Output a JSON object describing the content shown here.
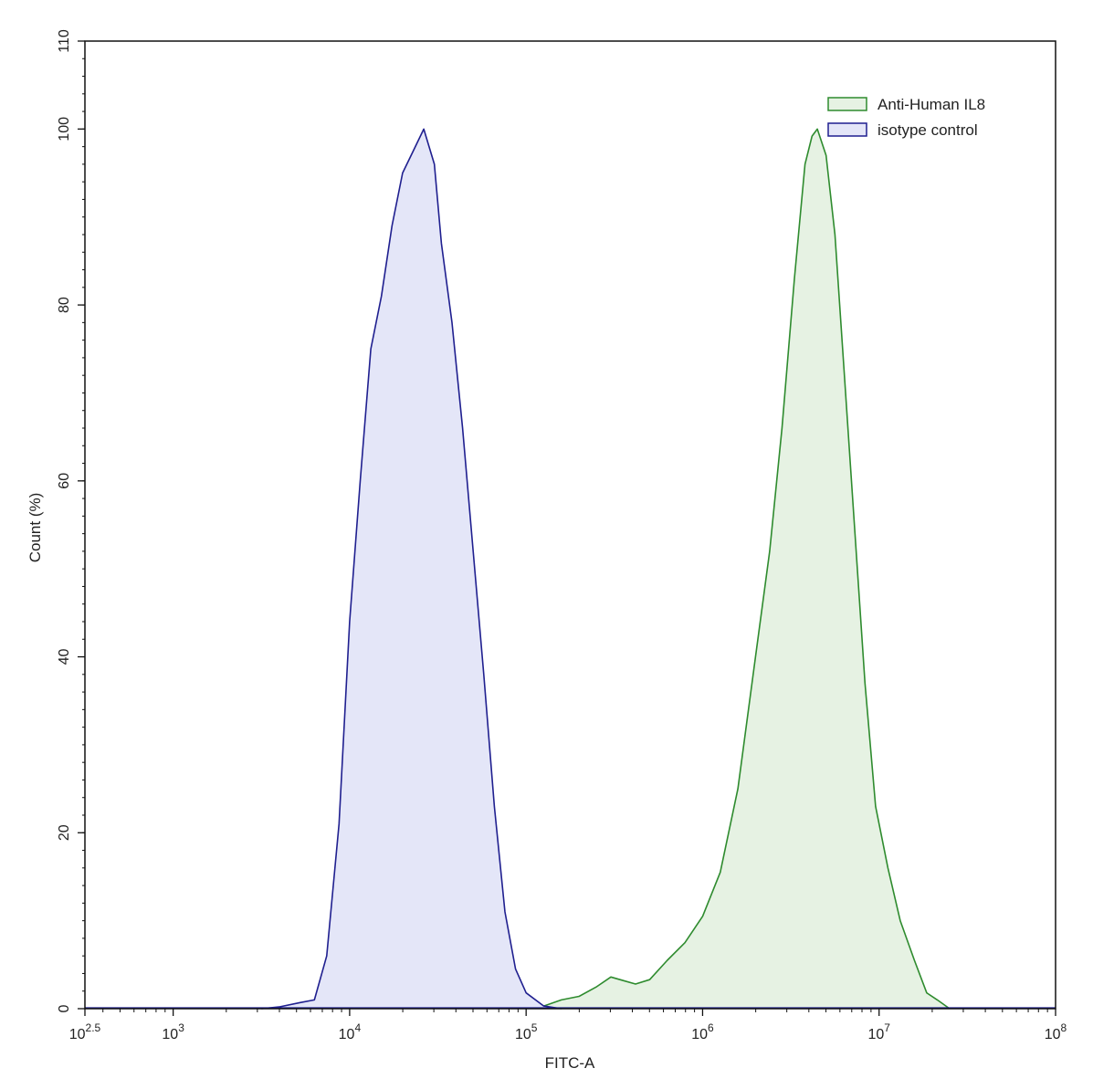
{
  "chart_data": {
    "type": "area",
    "title": "",
    "xlabel": "FITC-A",
    "ylabel": "Count (%)",
    "x_scale": "log10",
    "xlim_log10": [
      2.5,
      8
    ],
    "ylim": [
      0,
      110
    ],
    "x_ticks": [
      {
        "base": "10",
        "exp": "2.5",
        "log10": 2.5
      },
      {
        "base": "10",
        "exp": "3",
        "log10": 3
      },
      {
        "base": "10",
        "exp": "4",
        "log10": 4
      },
      {
        "base": "10",
        "exp": "5",
        "log10": 5
      },
      {
        "base": "10",
        "exp": "6",
        "log10": 6
      },
      {
        "base": "10",
        "exp": "7",
        "log10": 7
      },
      {
        "base": "10",
        "exp": "8",
        "log10": 8
      }
    ],
    "y_ticks": [
      "0",
      "20",
      "40",
      "60",
      "80",
      "100",
      "110"
    ],
    "y_tick_values": [
      0,
      20,
      40,
      60,
      80,
      100,
      110
    ],
    "grid": false,
    "legend_position": "top-right",
    "series": [
      {
        "name": "Anti-Human IL8",
        "color": "#2e8b2e",
        "fill": "#e6f2e3",
        "points_log10": [
          [
            5.0,
            0
          ],
          [
            5.1,
            0.3
          ],
          [
            5.2,
            1.0
          ],
          [
            5.3,
            1.4
          ],
          [
            5.4,
            2.5
          ],
          [
            5.48,
            3.6
          ],
          [
            5.55,
            3.2
          ],
          [
            5.62,
            2.8
          ],
          [
            5.7,
            3.3
          ],
          [
            5.8,
            5.5
          ],
          [
            5.9,
            7.5
          ],
          [
            6.0,
            10.5
          ],
          [
            6.1,
            15.5
          ],
          [
            6.2,
            25
          ],
          [
            6.3,
            40
          ],
          [
            6.38,
            52
          ],
          [
            6.45,
            66
          ],
          [
            6.52,
            83
          ],
          [
            6.58,
            96
          ],
          [
            6.62,
            99.2
          ],
          [
            6.65,
            100
          ],
          [
            6.7,
            97
          ],
          [
            6.75,
            88
          ],
          [
            6.8,
            73
          ],
          [
            6.86,
            55
          ],
          [
            6.92,
            37
          ],
          [
            6.98,
            23
          ],
          [
            7.05,
            16
          ],
          [
            7.12,
            10
          ],
          [
            7.2,
            5.5
          ],
          [
            7.27,
            1.8
          ],
          [
            7.33,
            1.0
          ],
          [
            7.4,
            0
          ]
        ]
      },
      {
        "name": "isotype control",
        "color": "#1f1f8f",
        "fill": "#e4e6f8",
        "points_log10": [
          [
            3.5,
            0
          ],
          [
            3.6,
            0.2
          ],
          [
            3.72,
            0.7
          ],
          [
            3.8,
            1.0
          ],
          [
            3.87,
            6
          ],
          [
            3.94,
            21
          ],
          [
            4.0,
            44
          ],
          [
            4.06,
            60
          ],
          [
            4.12,
            75
          ],
          [
            4.18,
            81
          ],
          [
            4.24,
            89
          ],
          [
            4.3,
            95
          ],
          [
            4.36,
            97.5
          ],
          [
            4.42,
            100
          ],
          [
            4.48,
            96
          ],
          [
            4.52,
            87
          ],
          [
            4.58,
            78
          ],
          [
            4.64,
            66
          ],
          [
            4.7,
            52
          ],
          [
            4.76,
            38
          ],
          [
            4.82,
            23
          ],
          [
            4.88,
            11
          ],
          [
            4.94,
            4.5
          ],
          [
            5.0,
            1.8
          ],
          [
            5.1,
            0.3
          ],
          [
            5.2,
            0
          ]
        ]
      }
    ]
  }
}
